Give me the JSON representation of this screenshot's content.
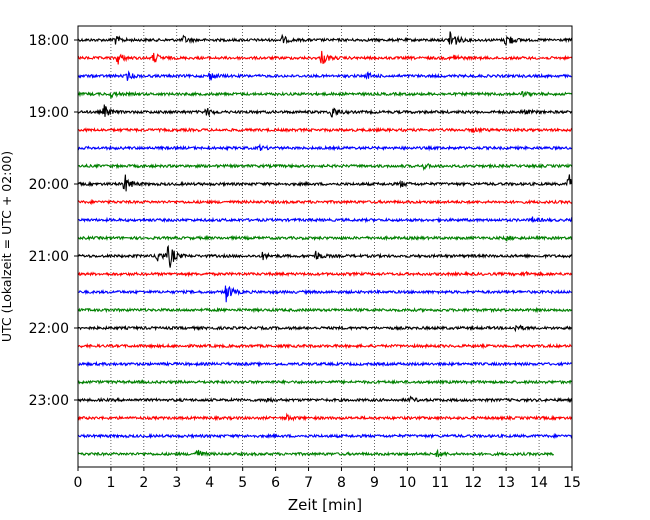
{
  "chart_data": {
    "type": "line",
    "title": "",
    "xlabel": "Zeit  [min]",
    "ylabel": "UTC (Lokalzeit = UTC + 02:00)",
    "xlim": [
      0,
      15
    ],
    "x_ticks": [
      0,
      1,
      2,
      3,
      4,
      5,
      6,
      7,
      8,
      9,
      10,
      11,
      12,
      13,
      14,
      15
    ],
    "y_tick_labels": [
      "18:00",
      "19:00",
      "20:00",
      "21:00",
      "22:00",
      "23:00"
    ],
    "grid": "vertical dotted lines at each minute",
    "trace_colors": [
      "#000000",
      "#ff0000",
      "#0000ff",
      "#008000"
    ],
    "trace_interval_minutes": 15,
    "traces": [
      {
        "start": "18:00",
        "color": "#000000",
        "end_min": 15,
        "events": [
          {
            "min": 1.1,
            "amp": 0.9
          },
          {
            "min": 3.2,
            "amp": 0.7
          },
          {
            "min": 6.2,
            "amp": 0.7
          },
          {
            "min": 11.3,
            "amp": 2.6
          },
          {
            "min": 13.0,
            "amp": 1.5
          }
        ]
      },
      {
        "start": "18:15",
        "color": "#ff0000",
        "end_min": 15,
        "events": [
          {
            "min": 1.2,
            "amp": 1.2
          },
          {
            "min": 2.3,
            "amp": 1.0
          },
          {
            "min": 7.4,
            "amp": 1.3
          },
          {
            "min": 11.4,
            "amp": 0.6
          }
        ]
      },
      {
        "start": "18:30",
        "color": "#0000ff",
        "end_min": 15,
        "events": [
          {
            "min": 1.5,
            "amp": 0.7
          },
          {
            "min": 4.0,
            "amp": 0.8
          },
          {
            "min": 8.8,
            "amp": 0.5
          }
        ]
      },
      {
        "start": "18:45",
        "color": "#008000",
        "end_min": 15,
        "events": [
          {
            "min": 1.0,
            "amp": 0.6
          },
          {
            "min": 13.5,
            "amp": 0.4
          }
        ]
      },
      {
        "start": "19:00",
        "color": "#000000",
        "end_min": 15,
        "events": [
          {
            "min": 0.8,
            "amp": 1.2
          },
          {
            "min": 3.9,
            "amp": 0.7
          },
          {
            "min": 7.7,
            "amp": 1.2
          },
          {
            "min": 13.5,
            "amp": 0.5
          }
        ]
      },
      {
        "start": "19:15",
        "color": "#ff0000",
        "end_min": 15,
        "events": [
          {
            "min": 12.0,
            "amp": 0.4
          }
        ]
      },
      {
        "start": "19:30",
        "color": "#0000ff",
        "end_min": 15,
        "events": [
          {
            "min": 5.5,
            "amp": 0.4
          }
        ]
      },
      {
        "start": "19:45",
        "color": "#008000",
        "end_min": 15,
        "events": [
          {
            "min": 10.5,
            "amp": 0.4
          }
        ]
      },
      {
        "start": "20:00",
        "color": "#000000",
        "end_min": 15,
        "events": [
          {
            "min": 1.4,
            "amp": 2.0
          },
          {
            "min": 9.8,
            "amp": 0.5
          },
          {
            "min": 14.9,
            "amp": 2.0
          }
        ]
      },
      {
        "start": "20:15",
        "color": "#ff0000",
        "end_min": 15,
        "events": []
      },
      {
        "start": "20:30",
        "color": "#0000ff",
        "end_min": 15,
        "events": [
          {
            "min": 13.8,
            "amp": 0.4
          }
        ]
      },
      {
        "start": "20:45",
        "color": "#008000",
        "end_min": 15,
        "events": [
          {
            "min": 13.0,
            "amp": 0.4
          }
        ]
      },
      {
        "start": "21:00",
        "color": "#000000",
        "end_min": 15,
        "events": [
          {
            "min": 2.4,
            "amp": 1.2
          },
          {
            "min": 2.75,
            "amp": 2.6
          },
          {
            "min": 5.6,
            "amp": 0.6
          },
          {
            "min": 7.2,
            "amp": 1.0
          }
        ]
      },
      {
        "start": "21:15",
        "color": "#ff0000",
        "end_min": 15,
        "events": [
          {
            "min": 13.5,
            "amp": 0.4
          }
        ]
      },
      {
        "start": "21:30",
        "color": "#0000ff",
        "end_min": 15,
        "events": [
          {
            "min": 4.5,
            "amp": 1.8
          }
        ]
      },
      {
        "start": "21:45",
        "color": "#008000",
        "end_min": 15,
        "events": []
      },
      {
        "start": "22:00",
        "color": "#000000",
        "end_min": 15,
        "events": [
          {
            "min": 13.3,
            "amp": 0.6
          }
        ]
      },
      {
        "start": "22:15",
        "color": "#ff0000",
        "end_min": 15,
        "events": []
      },
      {
        "start": "22:30",
        "color": "#0000ff",
        "end_min": 15,
        "events": []
      },
      {
        "start": "22:45",
        "color": "#008000",
        "end_min": 15,
        "events": []
      },
      {
        "start": "23:00",
        "color": "#000000",
        "end_min": 15,
        "events": [
          {
            "min": 5.7,
            "amp": 0.4
          },
          {
            "min": 10.1,
            "amp": 0.4
          }
        ]
      },
      {
        "start": "23:15",
        "color": "#ff0000",
        "end_min": 15,
        "events": [
          {
            "min": 6.3,
            "amp": 0.6
          }
        ]
      },
      {
        "start": "23:30",
        "color": "#0000ff",
        "end_min": 15,
        "events": []
      },
      {
        "start": "23:45",
        "color": "#008000",
        "end_min": 14.45,
        "events": [
          {
            "min": 3.6,
            "amp": 0.9
          },
          {
            "min": 10.9,
            "amp": 0.5
          }
        ]
      }
    ]
  }
}
